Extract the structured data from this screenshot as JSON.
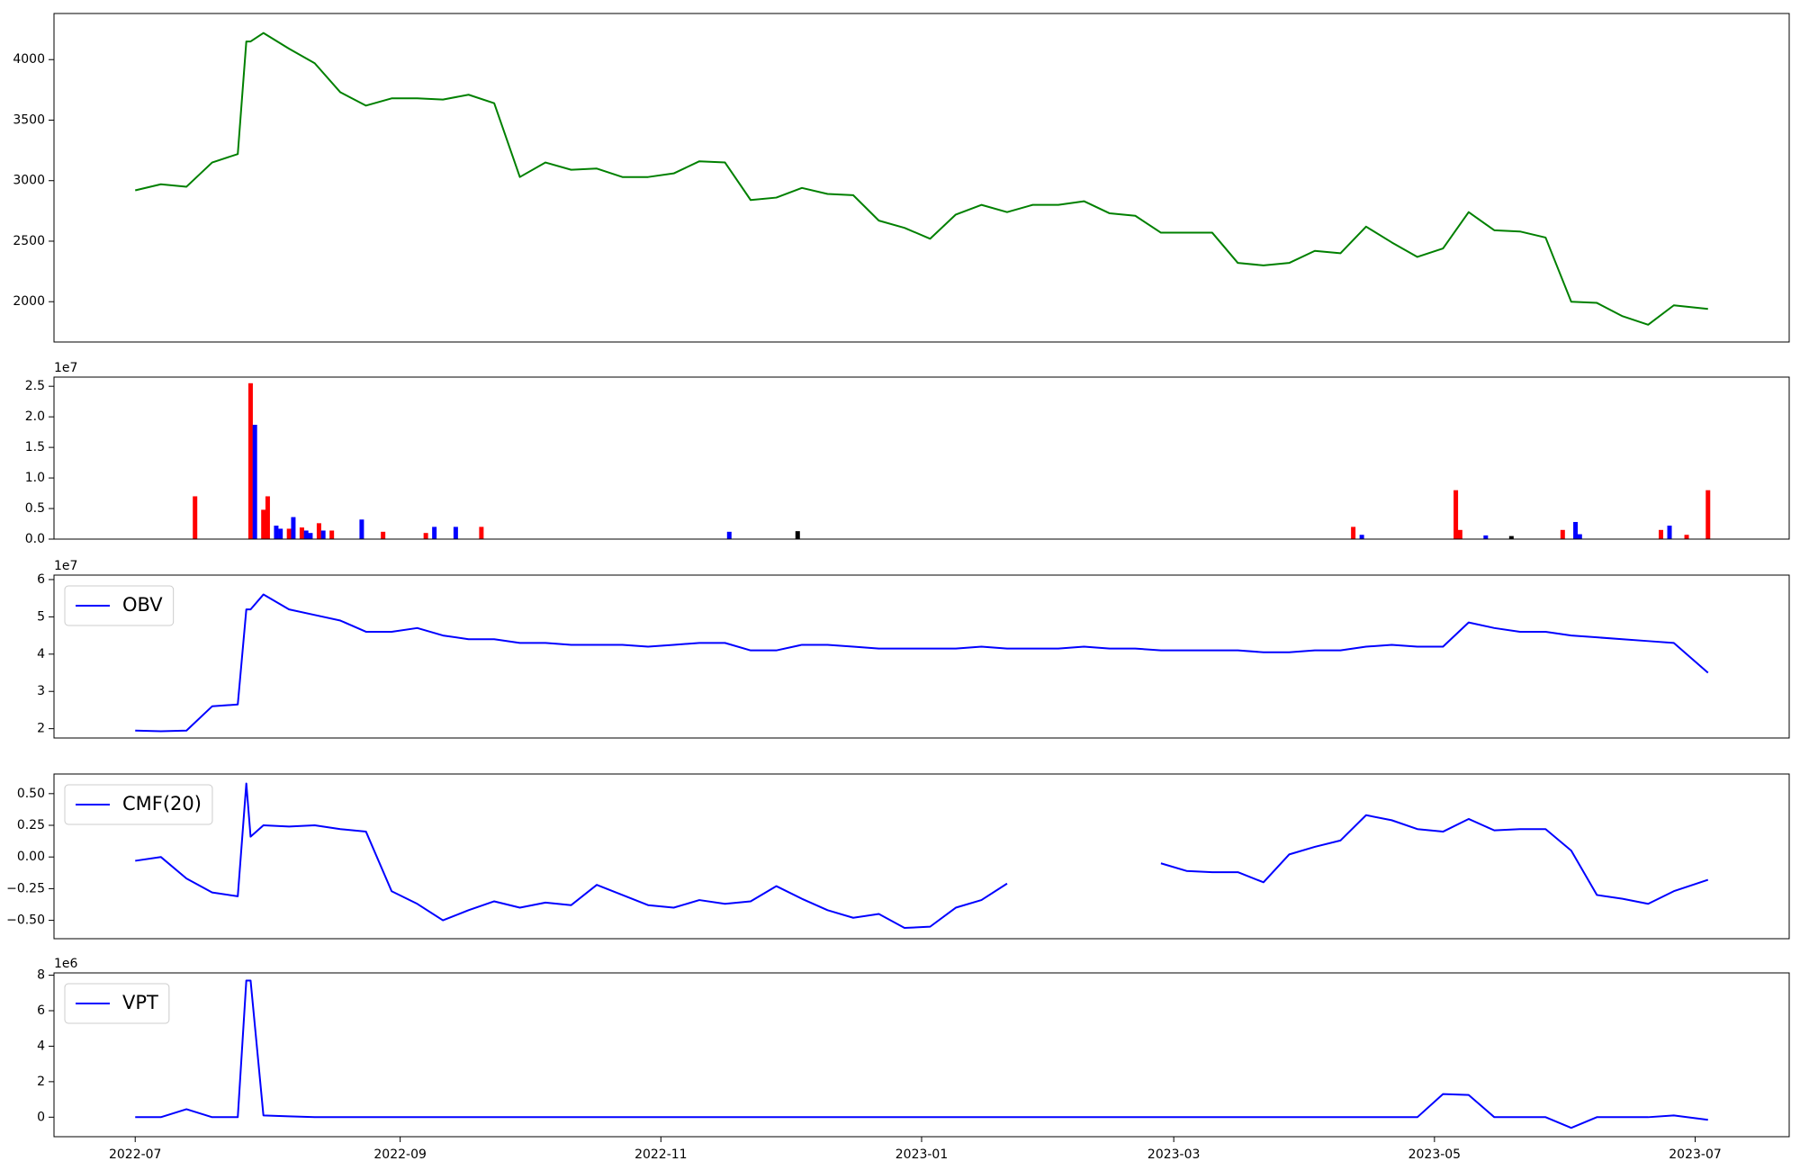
{
  "chart_data": [
    {
      "type": "line",
      "color": "#008000",
      "x": [
        "2022-07-01",
        "2022-07-07",
        "2022-07-13",
        "2022-07-19",
        "2022-07-25",
        "2022-07-27",
        "2022-07-28",
        "2022-07-31",
        "2022-08-06",
        "2022-08-12",
        "2022-08-18",
        "2022-08-24",
        "2022-08-30",
        "2022-09-05",
        "2022-09-11",
        "2022-09-17",
        "2022-09-23",
        "2022-09-29",
        "2022-10-05",
        "2022-10-11",
        "2022-10-17",
        "2022-10-23",
        "2022-10-29",
        "2022-11-04",
        "2022-11-10",
        "2022-11-16",
        "2022-11-22",
        "2022-11-28",
        "2022-12-04",
        "2022-12-10",
        "2022-12-16",
        "2022-12-22",
        "2022-12-28",
        "2023-01-03",
        "2023-01-09",
        "2023-01-15",
        "2023-01-21",
        "2023-01-27",
        "2023-02-02",
        "2023-02-08",
        "2023-02-14",
        "2023-02-20",
        "2023-02-26",
        "2023-03-04",
        "2023-03-10",
        "2023-03-16",
        "2023-03-22",
        "2023-03-28",
        "2023-04-03",
        "2023-04-09",
        "2023-04-15",
        "2023-04-21",
        "2023-04-27",
        "2023-05-03",
        "2023-05-09",
        "2023-05-15",
        "2023-05-21",
        "2023-05-27",
        "2023-06-02",
        "2023-06-08",
        "2023-06-14",
        "2023-06-20",
        "2023-06-26",
        "2023-07-04"
      ],
      "values": [
        2920,
        2970,
        2950,
        3150,
        3220,
        4150,
        4150,
        4220,
        4090,
        3970,
        3730,
        3620,
        3680,
        3680,
        3670,
        3710,
        3640,
        3030,
        3150,
        3090,
        3100,
        3030,
        3030,
        3060,
        3160,
        3150,
        2840,
        2860,
        2940,
        2890,
        2880,
        2670,
        2610,
        2520,
        2720,
        2800,
        2740,
        2800,
        2800,
        2830,
        2730,
        2710,
        2570,
        2570,
        2570,
        2320,
        2300,
        2320,
        2420,
        2400,
        2620,
        2490,
        2370,
        2440,
        2740,
        2590,
        2580,
        2530,
        2000,
        1990,
        1880,
        1810,
        1970,
        1940
      ],
      "xlim": [
        "2022-06-12",
        "2023-07-23"
      ],
      "ylim": [
        1667,
        4381
      ],
      "yticks": [
        2000,
        2500,
        3000,
        3500,
        4000
      ]
    },
    {
      "type": "bar",
      "offset_text": "1e7",
      "x": [
        "2022-07-15",
        "2022-07-28",
        "2022-07-29",
        "2022-07-31",
        "2022-08-01",
        "2022-08-03",
        "2022-08-04",
        "2022-08-06",
        "2022-08-07",
        "2022-08-09",
        "2022-08-10",
        "2022-08-11",
        "2022-08-13",
        "2022-08-14",
        "2022-08-16",
        "2022-08-23",
        "2022-08-28",
        "2022-09-07",
        "2022-09-09",
        "2022-09-14",
        "2022-09-20",
        "2022-11-17",
        "2022-12-03",
        "2023-04-12",
        "2023-04-14",
        "2023-05-06",
        "2023-05-07",
        "2023-05-13",
        "2023-05-19",
        "2023-05-31",
        "2023-06-03",
        "2023-06-04",
        "2023-06-23",
        "2023-06-25",
        "2023-06-29",
        "2023-07-04"
      ],
      "values": [
        0.7,
        2.55,
        1.87,
        0.48,
        0.7,
        0.22,
        0.17,
        0.17,
        0.36,
        0.19,
        0.14,
        0.1,
        0.26,
        0.14,
        0.14,
        0.32,
        0.12,
        0.1,
        0.2,
        0.2,
        0.2,
        0.12,
        0.13,
        0.2,
        0.07,
        0.8,
        0.15,
        0.06,
        0.05,
        0.15,
        0.28,
        0.08,
        0.15,
        0.22,
        0.07,
        0.8
      ],
      "colors": [
        "#ff0000",
        "#ff0000",
        "#0000ff",
        "#ff0000",
        "#ff0000",
        "#0000ff",
        "#0000ff",
        "#ff0000",
        "#0000ff",
        "#ff0000",
        "#0000ff",
        "#0000ff",
        "#ff0000",
        "#0000ff",
        "#ff0000",
        "#0000ff",
        "#ff0000",
        "#ff0000",
        "#0000ff",
        "#0000ff",
        "#ff0000",
        "#0000ff",
        "#000000",
        "#ff0000",
        "#0000ff",
        "#ff0000",
        "#ff0000",
        "#0000ff",
        "#000000",
        "#ff0000",
        "#0000ff",
        "#0000ff",
        "#ff0000",
        "#0000ff",
        "#ff0000",
        "#ff0000"
      ],
      "xlim": [
        "2022-06-12",
        "2023-07-23"
      ],
      "ylim": [
        0,
        2.65
      ],
      "yticks": [
        {
          "value": 0,
          "label": "0.0"
        },
        0.5,
        {
          "value": 1,
          "label": "1.0"
        },
        1.5,
        {
          "value": 2,
          "label": "2.0"
        },
        2.5
      ]
    },
    {
      "type": "line",
      "offset_text": "1e7",
      "legend": "upper left",
      "x": [
        "2022-07-01",
        "2022-07-07",
        "2022-07-13",
        "2022-07-19",
        "2022-07-25",
        "2022-07-27",
        "2022-07-28",
        "2022-07-31",
        "2022-08-06",
        "2022-08-12",
        "2022-08-18",
        "2022-08-24",
        "2022-08-30",
        "2022-09-05",
        "2022-09-11",
        "2022-09-17",
        "2022-09-23",
        "2022-09-29",
        "2022-10-05",
        "2022-10-11",
        "2022-10-17",
        "2022-10-23",
        "2022-10-29",
        "2022-11-04",
        "2022-11-10",
        "2022-11-16",
        "2022-11-22",
        "2022-11-28",
        "2022-12-04",
        "2022-12-10",
        "2022-12-16",
        "2022-12-22",
        "2022-12-28",
        "2023-01-03",
        "2023-01-09",
        "2023-01-15",
        "2023-01-21",
        "2023-01-27",
        "2023-02-02",
        "2023-02-08",
        "2023-02-14",
        "2023-02-20",
        "2023-02-26",
        "2023-03-04",
        "2023-03-10",
        "2023-03-16",
        "2023-03-22",
        "2023-03-28",
        "2023-04-03",
        "2023-04-09",
        "2023-04-15",
        "2023-04-21",
        "2023-04-27",
        "2023-05-03",
        "2023-05-09",
        "2023-05-15",
        "2023-05-21",
        "2023-05-27",
        "2023-06-02",
        "2023-06-08",
        "2023-06-14",
        "2023-06-20",
        "2023-06-26",
        "2023-07-04"
      ],
      "series": [
        {
          "name": "OBV",
          "color": "#0000ff",
          "values": [
            1.95,
            1.93,
            1.95,
            2.6,
            2.65,
            5.2,
            5.2,
            5.6,
            5.2,
            5.05,
            4.9,
            4.6,
            4.6,
            4.7,
            4.5,
            4.4,
            4.4,
            4.3,
            4.3,
            4.25,
            4.25,
            4.25,
            4.2,
            4.25,
            4.3,
            4.3,
            4.1,
            4.1,
            4.25,
            4.25,
            4.2,
            4.15,
            4.15,
            4.15,
            4.15,
            4.2,
            4.15,
            4.15,
            4.15,
            4.2,
            4.15,
            4.15,
            4.1,
            4.1,
            4.1,
            4.1,
            4.05,
            4.05,
            4.1,
            4.1,
            4.2,
            4.25,
            4.2,
            4.2,
            4.85,
            4.7,
            4.6,
            4.6,
            4.5,
            4.45,
            4.4,
            4.35,
            4.3,
            3.5
          ]
        }
      ],
      "xlim": [
        "2022-06-12",
        "2023-07-23"
      ],
      "ylim": [
        1.75,
        6.12
      ],
      "yticks": [
        2,
        3,
        4,
        5,
        6
      ]
    },
    {
      "type": "line",
      "legend": "upper left",
      "x": [
        "2022-07-01",
        "2022-07-07",
        "2022-07-13",
        "2022-07-19",
        "2022-07-25",
        "2022-07-27",
        "2022-07-28",
        "2022-07-31",
        "2022-08-06",
        "2022-08-12",
        "2022-08-18",
        "2022-08-24",
        "2022-08-30",
        "2022-09-05",
        "2022-09-11",
        "2022-09-17",
        "2022-09-23",
        "2022-09-29",
        "2022-10-05",
        "2022-10-11",
        "2022-10-17",
        "2022-10-23",
        "2022-10-29",
        "2022-11-04",
        "2022-11-10",
        "2022-11-16",
        "2022-11-22",
        "2022-11-28",
        "2022-12-04",
        "2022-12-10",
        "2022-12-16",
        "2022-12-22",
        "2022-12-28",
        "2023-01-03",
        "2023-01-09",
        "2023-01-15",
        "2023-01-21",
        "2023-01-27",
        "2023-02-02",
        "2023-02-08",
        "2023-02-14",
        "2023-02-20",
        "2023-02-26",
        "2023-03-04",
        "2023-03-10",
        "2023-03-16",
        "2023-03-22",
        "2023-03-28",
        "2023-04-03",
        "2023-04-09",
        "2023-04-15",
        "2023-04-21",
        "2023-04-27",
        "2023-05-03",
        "2023-05-09",
        "2023-05-15",
        "2023-05-21",
        "2023-05-27",
        "2023-06-02",
        "2023-06-08",
        "2023-06-14",
        "2023-06-20",
        "2023-06-26",
        "2023-07-04"
      ],
      "series": [
        {
          "name": "CMF(20)",
          "color": "#0000ff",
          "values": [
            -0.03,
            0,
            -0.17,
            -0.28,
            -0.31,
            0.58,
            0.16,
            0.25,
            0.24,
            0.25,
            0.22,
            0.2,
            -0.27,
            -0.37,
            -0.5,
            -0.42,
            -0.35,
            -0.4,
            -0.36,
            -0.38,
            -0.22,
            -0.3,
            -0.38,
            -0.4,
            -0.34,
            -0.37,
            -0.35,
            -0.23,
            -0.33,
            -0.42,
            -0.48,
            -0.45,
            -0.56,
            -0.55,
            -0.4,
            -0.34,
            -0.21,
            null,
            null,
            null,
            null,
            null,
            -0.05,
            -0.11,
            -0.12,
            -0.12,
            -0.2,
            0.02,
            0.08,
            0.13,
            0.33,
            0.29,
            0.22,
            0.2,
            0.3,
            0.21,
            0.22,
            0.22,
            0.05,
            -0.3,
            -0.33,
            -0.37,
            -0.27,
            -0.18
          ]
        }
      ],
      "xlim": [
        "2022-06-12",
        "2023-07-23"
      ],
      "ylim": [
        -0.645,
        0.655
      ],
      "yticks": [
        {
          "value": -0.5,
          "label": "−0.50"
        },
        {
          "value": -0.25,
          "label": "−0.25"
        },
        {
          "value": 0,
          "label": "0.00"
        },
        {
          "value": 0.25,
          "label": "0.25"
        },
        {
          "value": 0.5,
          "label": "0.50"
        }
      ]
    },
    {
      "type": "line",
      "offset_text": "1e6",
      "legend": "upper left",
      "x": [
        "2022-07-01",
        "2022-07-07",
        "2022-07-13",
        "2022-07-19",
        "2022-07-25",
        "2022-07-27",
        "2022-07-28",
        "2022-07-31",
        "2022-08-06",
        "2022-08-12",
        "2022-08-18",
        "2022-08-24",
        "2022-08-30",
        "2022-09-05",
        "2022-09-11",
        "2022-09-17",
        "2022-09-23",
        "2022-09-29",
        "2022-10-05",
        "2022-10-11",
        "2022-10-17",
        "2022-10-23",
        "2022-10-29",
        "2022-11-04",
        "2022-11-10",
        "2022-11-16",
        "2022-11-22",
        "2022-11-28",
        "2022-12-04",
        "2022-12-10",
        "2022-12-16",
        "2022-12-22",
        "2022-12-28",
        "2023-01-03",
        "2023-01-09",
        "2023-01-15",
        "2023-01-21",
        "2023-01-27",
        "2023-02-02",
        "2023-02-08",
        "2023-02-14",
        "2023-02-20",
        "2023-02-26",
        "2023-03-04",
        "2023-03-10",
        "2023-03-16",
        "2023-03-22",
        "2023-03-28",
        "2023-04-03",
        "2023-04-09",
        "2023-04-15",
        "2023-04-21",
        "2023-04-27",
        "2023-05-03",
        "2023-05-09",
        "2023-05-15",
        "2023-05-21",
        "2023-05-27",
        "2023-06-02",
        "2023-06-08",
        "2023-06-14",
        "2023-06-20",
        "2023-06-26",
        "2023-07-04"
      ],
      "series": [
        {
          "name": "VPT",
          "color": "#0000ff",
          "values": [
            0,
            0,
            0.45,
            0,
            0,
            7.7,
            7.7,
            0.1,
            0.05,
            0,
            0,
            0,
            0,
            0,
            0,
            0,
            0,
            0,
            0,
            0,
            0,
            0,
            0,
            0,
            0,
            0,
            0,
            0,
            0,
            0,
            0,
            0,
            0,
            0,
            0,
            0,
            0,
            0,
            0,
            0,
            0,
            0,
            0,
            0,
            0,
            0,
            0,
            0,
            0,
            0,
            0,
            0,
            0,
            1.3,
            1.25,
            0,
            0,
            0,
            -0.6,
            0,
            0,
            0,
            0.1,
            -0.15
          ]
        }
      ],
      "xlim": [
        "2022-06-12",
        "2023-07-23"
      ],
      "ylim": [
        -1.1,
        8.13
      ],
      "yticks": [
        0,
        2,
        4,
        6,
        8
      ],
      "xticks": [
        {
          "value": "2022-07-01",
          "label": "2022-07"
        },
        {
          "value": "2022-09-01",
          "label": "2022-09"
        },
        {
          "value": "2022-11-01",
          "label": "2022-11"
        },
        {
          "value": "2023-01-01",
          "label": "2023-01"
        },
        {
          "value": "2023-03-01",
          "label": "2023-03"
        },
        {
          "value": "2023-05-01",
          "label": "2023-05"
        },
        {
          "value": "2023-07-01",
          "label": "2023-07"
        }
      ]
    }
  ]
}
